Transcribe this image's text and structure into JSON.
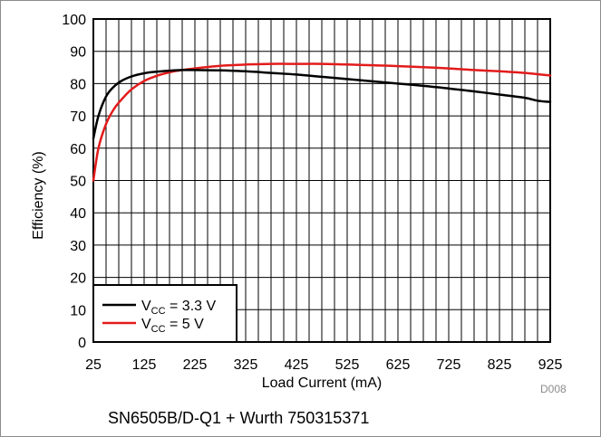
{
  "chart_data": {
    "type": "line",
    "title": "",
    "xlabel": "Load Current (mA)",
    "ylabel": "Efficiency (%)",
    "xlim": [
      25,
      925
    ],
    "ylim": [
      0,
      100
    ],
    "x_ticks": [
      25,
      125,
      225,
      325,
      425,
      525,
      625,
      725,
      825,
      925
    ],
    "y_ticks": [
      0,
      10,
      20,
      30,
      40,
      50,
      60,
      70,
      80,
      90,
      100
    ],
    "grid": true,
    "legend_position": "bottom-left",
    "series": [
      {
        "name": "VCC = 3.3 V",
        "label_main": "V",
        "label_sub": "CC",
        "label_rest": " = 3.3 V",
        "color": "#000000",
        "x": [
          25,
          35,
          50,
          65,
          80,
          100,
          125,
          150,
          175,
          200,
          225,
          275,
          325,
          375,
          425,
          475,
          525,
          575,
          625,
          675,
          725,
          775,
          825,
          875,
          900,
          925
        ],
        "y": [
          63,
          70,
          76,
          79,
          80.8,
          82.2,
          83.2,
          83.7,
          84,
          84.2,
          84.2,
          84.1,
          83.8,
          83.3,
          82.8,
          82.1,
          81.4,
          80.7,
          80,
          79.3,
          78.5,
          77.6,
          76.6,
          75.6,
          74.7,
          74.3
        ]
      },
      {
        "name": "VCC = 5 V",
        "label_main": "V",
        "label_sub": "CC",
        "label_rest": " = 5 V",
        "color": "#e31b1b",
        "x": [
          25,
          35,
          50,
          65,
          80,
          100,
          125,
          150,
          175,
          200,
          225,
          275,
          325,
          375,
          425,
          475,
          525,
          575,
          625,
          675,
          725,
          775,
          825,
          875,
          925
        ],
        "y": [
          50,
          60,
          67.5,
          72,
          75,
          78.2,
          80.8,
          82.4,
          83.5,
          84.2,
          84.7,
          85.5,
          85.9,
          86.1,
          86.1,
          86.1,
          85.9,
          85.7,
          85.4,
          85.1,
          84.7,
          84.2,
          83.8,
          83.3,
          82.5
        ]
      }
    ]
  },
  "caption": "SN6505B/D-Q1 + Wurth 750315371",
  "figure_id": "D008"
}
